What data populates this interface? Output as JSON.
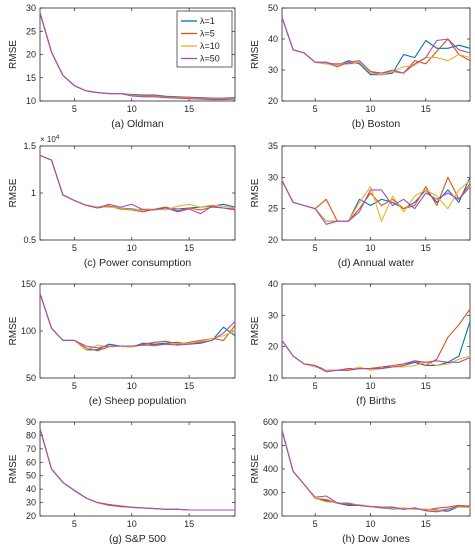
{
  "series_styles": [
    {
      "name": "λ=1",
      "color": "#0072BD"
    },
    {
      "name": "λ=5",
      "color": "#D95319"
    },
    {
      "name": "λ=10",
      "color": "#EDB120"
    },
    {
      "name": "λ=50",
      "color": "#A64DB8"
    }
  ],
  "chart_data": [
    {
      "type": "line",
      "title": "(a) Oldman",
      "xlabel": "",
      "ylabel": "RMSE",
      "xlim": [
        2,
        19
      ],
      "ylim": [
        10,
        30
      ],
      "xticks": [
        5,
        10,
        15
      ],
      "yticks": [
        10,
        15,
        20,
        25,
        30
      ],
      "legend": "top-right",
      "grid": false,
      "x": [
        2,
        3,
        4,
        5,
        6,
        7,
        8,
        9,
        10,
        11,
        12,
        13,
        14,
        15,
        16,
        17,
        18,
        19
      ],
      "series": [
        {
          "name": "λ=1",
          "values": [
            29,
            20.5,
            15.5,
            13.3,
            12.2,
            11.8,
            11.6,
            11.6,
            11.4,
            11.3,
            11.3,
            11.0,
            10.9,
            10.8,
            10.7,
            10.6,
            10.6,
            10.7
          ]
        },
        {
          "name": "λ=5",
          "values": [
            29,
            20.5,
            15.5,
            13.3,
            12.2,
            11.8,
            11.6,
            11.6,
            11.3,
            11.1,
            11.2,
            10.9,
            10.8,
            10.8,
            10.6,
            10.5,
            10.5,
            10.6
          ]
        },
        {
          "name": "λ=10",
          "values": [
            29,
            20.5,
            15.5,
            13.3,
            12.2,
            11.8,
            11.6,
            11.6,
            11.2,
            11.0,
            11.0,
            10.8,
            10.7,
            10.6,
            10.5,
            10.4,
            10.4,
            10.5
          ]
        },
        {
          "name": "λ=50",
          "values": [
            29,
            20.5,
            15.5,
            13.3,
            12.2,
            11.8,
            11.6,
            11.6,
            11.1,
            10.9,
            10.9,
            10.7,
            10.6,
            10.5,
            10.4,
            10.3,
            10.3,
            10.4
          ]
        }
      ]
    },
    {
      "type": "line",
      "title": "(b) Boston",
      "xlabel": "",
      "ylabel": "RMSE",
      "xlim": [
        2,
        19
      ],
      "ylim": [
        20,
        50
      ],
      "xticks": [
        5,
        10,
        15
      ],
      "yticks": [
        20,
        30,
        40,
        50
      ],
      "grid": false,
      "x": [
        2,
        3,
        4,
        5,
        6,
        7,
        8,
        9,
        10,
        11,
        12,
        13,
        14,
        15,
        16,
        17,
        18,
        19
      ],
      "series": [
        {
          "name": "λ=1",
          "values": [
            47,
            36.5,
            35.5,
            32.5,
            32.5,
            31.5,
            33,
            32,
            28.5,
            28.5,
            29,
            35,
            34,
            39.5,
            37,
            37,
            38,
            37
          ]
        },
        {
          "name": "λ=5",
          "values": [
            47,
            36.5,
            35.5,
            32.5,
            32,
            32,
            32,
            32.5,
            29,
            29,
            29.5,
            29,
            33,
            32,
            36,
            40,
            35,
            33
          ]
        },
        {
          "name": "λ=10",
          "values": [
            47,
            36.5,
            35.5,
            32.5,
            32,
            31.5,
            32.5,
            32.5,
            29,
            28.5,
            29.5,
            31,
            31.5,
            34,
            34,
            33,
            35,
            34
          ]
        },
        {
          "name": "λ=50",
          "values": [
            47,
            36.5,
            35.5,
            32.5,
            32.5,
            31,
            32.5,
            33,
            29.5,
            29,
            30,
            29,
            32,
            34,
            39.5,
            40,
            36.5,
            35.5
          ]
        }
      ]
    },
    {
      "type": "line",
      "title": "(c) Power consumption",
      "xlabel": "",
      "ylabel": "RMSE",
      "exponent_label": "× 10",
      "exponent_power": "4",
      "xlim": [
        2,
        19
      ],
      "ylim": [
        0.5,
        1.5
      ],
      "xticks": [
        5,
        10,
        15
      ],
      "yticks": [
        0.5,
        1,
        1.5
      ],
      "grid": false,
      "x": [
        2,
        3,
        4,
        5,
        6,
        7,
        8,
        9,
        10,
        11,
        12,
        13,
        14,
        15,
        16,
        17,
        18,
        19
      ],
      "series": [
        {
          "name": "λ=1",
          "values": [
            1.4,
            1.35,
            0.98,
            0.92,
            0.87,
            0.85,
            0.86,
            0.84,
            0.83,
            0.82,
            0.83,
            0.84,
            0.83,
            0.84,
            0.85,
            0.86,
            0.88,
            0.85
          ]
        },
        {
          "name": "λ=5",
          "values": [
            1.4,
            1.35,
            0.98,
            0.92,
            0.87,
            0.84,
            0.86,
            0.83,
            0.82,
            0.8,
            0.83,
            0.85,
            0.81,
            0.84,
            0.82,
            0.85,
            0.84,
            0.83
          ]
        },
        {
          "name": "λ=10",
          "values": [
            1.4,
            1.35,
            0.98,
            0.92,
            0.87,
            0.85,
            0.85,
            0.84,
            0.82,
            0.83,
            0.83,
            0.82,
            0.86,
            0.88,
            0.85,
            0.87,
            0.86,
            0.84
          ]
        },
        {
          "name": "λ=50",
          "values": [
            1.4,
            1.35,
            0.98,
            0.92,
            0.87,
            0.84,
            0.88,
            0.85,
            0.88,
            0.82,
            0.82,
            0.84,
            0.8,
            0.83,
            0.78,
            0.86,
            0.84,
            0.82
          ]
        }
      ]
    },
    {
      "type": "line",
      "title": "(d) Annual water",
      "xlabel": "",
      "ylabel": "RMSE",
      "xlim": [
        2,
        19
      ],
      "ylim": [
        20,
        35
      ],
      "xticks": [
        5,
        10,
        15
      ],
      "yticks": [
        20,
        25,
        30,
        35
      ],
      "grid": false,
      "x": [
        2,
        3,
        4,
        5,
        6,
        7,
        8,
        9,
        10,
        11,
        12,
        13,
        14,
        15,
        16,
        17,
        18,
        19
      ],
      "series": [
        {
          "name": "λ=1",
          "values": [
            29.5,
            26,
            25.5,
            25,
            23,
            23,
            23,
            26.5,
            25.5,
            26.5,
            26,
            25,
            26,
            28,
            26,
            28,
            26,
            30
          ]
        },
        {
          "name": "λ=5",
          "values": [
            29.5,
            26,
            25.5,
            25,
            26.5,
            23,
            23,
            25,
            27.5,
            25.5,
            26.5,
            25,
            25.5,
            28.5,
            25.5,
            30,
            26.5,
            29
          ]
        },
        {
          "name": "λ=10",
          "values": [
            29.5,
            26,
            25.5,
            25,
            23,
            23,
            23,
            26,
            28.5,
            23,
            27,
            24.5,
            27,
            28,
            27,
            25,
            28,
            29.5
          ]
        },
        {
          "name": "λ=50",
          "values": [
            29.5,
            26,
            25.5,
            25,
            22.5,
            23,
            23,
            24.5,
            28,
            28,
            25.5,
            26.5,
            25,
            27.5,
            26.5,
            27.5,
            26.5,
            28.5
          ]
        }
      ]
    },
    {
      "type": "line",
      "title": "(e) Sheep population",
      "xlabel": "",
      "ylabel": "RMSE",
      "xlim": [
        2,
        19
      ],
      "ylim": [
        50,
        150
      ],
      "xticks": [
        5,
        10,
        15
      ],
      "yticks": [
        50,
        100,
        150
      ],
      "grid": false,
      "x": [
        2,
        3,
        4,
        5,
        6,
        7,
        8,
        9,
        10,
        11,
        12,
        13,
        14,
        15,
        16,
        17,
        18,
        19
      ],
      "series": [
        {
          "name": "λ=1",
          "values": [
            140,
            103,
            90,
            90,
            80,
            80,
            86,
            84,
            83,
            87,
            86,
            87,
            88,
            86,
            87,
            90,
            104,
            95
          ]
        },
        {
          "name": "λ=5",
          "values": [
            140,
            103,
            90,
            90,
            82,
            79,
            83,
            84,
            83,
            86,
            88,
            89,
            86,
            88,
            90,
            92,
            90,
            106
          ]
        },
        {
          "name": "λ=10",
          "values": [
            140,
            103,
            90,
            90,
            80,
            85,
            83,
            84,
            83,
            85,
            84,
            86,
            87,
            87,
            89,
            92,
            95,
            100
          ]
        },
        {
          "name": "λ=50",
          "values": [
            140,
            103,
            90,
            90,
            84,
            82,
            84,
            84,
            84,
            85,
            85,
            86,
            85,
            86,
            88,
            90,
            98,
            110
          ]
        }
      ]
    },
    {
      "type": "line",
      "title": "(f) Births",
      "xlabel": "",
      "ylabel": "RMSE",
      "xlim": [
        2,
        19
      ],
      "ylim": [
        10,
        40
      ],
      "xticks": [
        5,
        10,
        15
      ],
      "yticks": [
        10,
        20,
        30,
        40
      ],
      "grid": false,
      "x": [
        2,
        3,
        4,
        5,
        6,
        7,
        8,
        9,
        10,
        11,
        12,
        13,
        14,
        15,
        16,
        17,
        18,
        19
      ],
      "series": [
        {
          "name": "λ=1",
          "values": [
            22,
            17,
            14.5,
            14,
            12,
            12.5,
            12.5,
            13,
            13,
            13.5,
            13.5,
            14,
            15,
            14,
            14,
            15,
            17,
            28
          ]
        },
        {
          "name": "λ=5",
          "values": [
            22,
            17,
            14.5,
            14,
            12.5,
            12.5,
            13,
            13,
            13,
            13.5,
            14,
            14.5,
            15.5,
            14,
            16,
            23,
            27,
            32
          ]
        },
        {
          "name": "λ=10",
          "values": [
            22,
            17,
            14.5,
            13.5,
            12.5,
            12.5,
            12.5,
            13.5,
            12.5,
            13,
            13.5,
            13.5,
            14,
            15,
            14,
            14.5,
            16,
            17
          ]
        },
        {
          "name": "λ=50",
          "values": [
            22,
            17,
            14.5,
            14,
            12,
            12.5,
            12.5,
            13,
            13,
            13,
            13.5,
            14,
            15.5,
            15,
            15.5,
            15,
            15,
            16.5
          ]
        }
      ]
    },
    {
      "type": "line",
      "title": "(g) S&P 500",
      "xlabel": "",
      "ylabel": "RMSE",
      "xlim": [
        2,
        19
      ],
      "ylim": [
        20,
        90
      ],
      "xticks": [
        5,
        10,
        15
      ],
      "yticks": [
        20,
        30,
        40,
        50,
        60,
        70,
        80,
        90
      ],
      "grid": false,
      "x": [
        2,
        3,
        4,
        5,
        6,
        7,
        8,
        9,
        10,
        11,
        12,
        13,
        14,
        15,
        16,
        17,
        18,
        19
      ],
      "series": [
        {
          "name": "λ=1",
          "values": [
            85,
            55,
            45,
            39,
            33.5,
            30,
            28.5,
            27,
            26.5,
            26,
            25.5,
            25,
            25,
            24.5,
            24.5,
            24.5,
            24.5,
            24.5
          ]
        },
        {
          "name": "λ=5",
          "values": [
            85,
            55,
            45,
            39,
            33.5,
            30,
            28,
            27,
            26.5,
            26,
            25.5,
            25,
            25,
            24.5,
            24.5,
            24.5,
            24.5,
            24.5
          ]
        },
        {
          "name": "λ=10",
          "values": [
            85,
            55,
            45,
            39,
            33.5,
            30,
            28.5,
            27.5,
            26.5,
            26,
            25.5,
            25,
            25,
            24.5,
            24.5,
            24.5,
            24.5,
            24.5
          ]
        },
        {
          "name": "λ=50",
          "values": [
            85,
            55,
            45,
            39,
            33.5,
            30,
            28.5,
            27.5,
            26.5,
            26,
            25.5,
            25,
            25,
            24.5,
            24.5,
            24.5,
            24.5,
            24.5
          ]
        }
      ]
    },
    {
      "type": "line",
      "title": "(h) Dow Jones",
      "xlabel": "",
      "ylabel": "RMSE",
      "xlim": [
        2,
        19
      ],
      "ylim": [
        200,
        600
      ],
      "xticks": [
        5,
        10,
        15
      ],
      "yticks": [
        200,
        300,
        400,
        500,
        600
      ],
      "grid": false,
      "x": [
        2,
        3,
        4,
        5,
        6,
        7,
        8,
        9,
        10,
        11,
        12,
        13,
        14,
        15,
        16,
        17,
        18,
        19
      ],
      "series": [
        {
          "name": "λ=1",
          "values": [
            565,
            390,
            335,
            275,
            265,
            255,
            245,
            245,
            240,
            235,
            230,
            232,
            230,
            228,
            225,
            220,
            240,
            238
          ]
        },
        {
          "name": "λ=5",
          "values": [
            565,
            390,
            335,
            275,
            270,
            255,
            255,
            245,
            240,
            235,
            235,
            230,
            232,
            225,
            233,
            238,
            245,
            240
          ]
        },
        {
          "name": "λ=10",
          "values": [
            565,
            390,
            335,
            275,
            260,
            258,
            250,
            248,
            240,
            238,
            232,
            235,
            228,
            230,
            222,
            230,
            238,
            236
          ]
        },
        {
          "name": "λ=50",
          "values": [
            565,
            390,
            335,
            280,
            285,
            255,
            250,
            245,
            240,
            238,
            238,
            228,
            235,
            222,
            218,
            228,
            244,
            242
          ]
        }
      ]
    }
  ]
}
